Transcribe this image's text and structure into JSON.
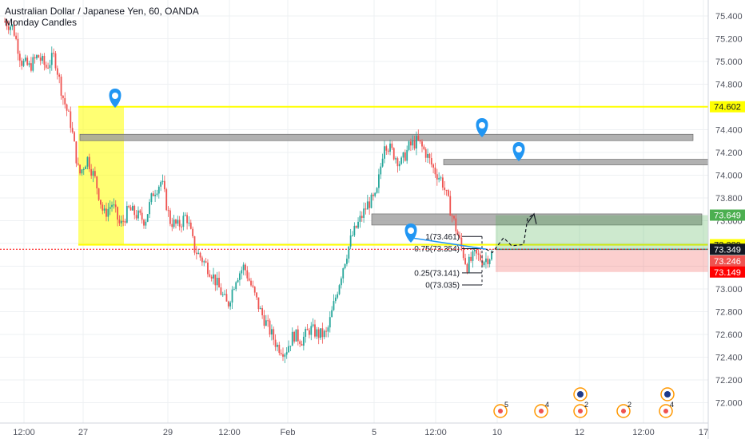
{
  "header": {
    "title": "Australian Dollar / Japanese Yen, 60, OANDA",
    "subtitle": "Monday Candles"
  },
  "colors": {
    "up": "#26a69a",
    "down": "#ef5350",
    "zone_yellow": "#ffff00",
    "grey_zone": "#9e9e9e",
    "green_zone": "#4caf50",
    "red_zone": "#ef5350",
    "marker_blue": "#2196f3",
    "price_red": "#ff0000",
    "axis_text": "#50535e",
    "grid": "#eef0f3"
  },
  "chart_data": {
    "type": "candlestick",
    "symbol": "AUDJPY",
    "timeframe": "60",
    "source": "OANDA",
    "ylim": [
      71.95,
      75.52
    ],
    "y_ticks": [
      "75.400",
      "75.200",
      "75.000",
      "74.800",
      "74.600",
      "74.400",
      "74.200",
      "74.000",
      "73.800",
      "73.600",
      "73.400",
      "73.200",
      "73.000",
      "72.800",
      "72.600",
      "72.400",
      "72.200",
      "72.000"
    ],
    "x_ticks": [
      "12:00",
      "27",
      "29",
      "12:00",
      "Feb",
      "5",
      "12:00",
      "10",
      "12",
      "12:00",
      "17"
    ],
    "price_path": [
      [
        "12:00",
        75.35
      ],
      [
        "",
        75.3
      ],
      [
        "",
        75.0
      ],
      [
        "",
        74.95
      ],
      [
        "",
        75.05
      ],
      [
        "",
        74.95
      ],
      [
        "",
        75.05
      ],
      [
        "",
        74.7
      ],
      [
        "27",
        74.45
      ],
      [
        "",
        74.0
      ],
      [
        "",
        74.15
      ],
      [
        "",
        73.95
      ],
      [
        "",
        73.65
      ],
      [
        "",
        73.75
      ],
      [
        "",
        73.55
      ],
      [
        "",
        73.7
      ],
      [
        "",
        73.65
      ],
      [
        "",
        73.6
      ],
      [
        "29",
        73.85
      ],
      [
        "",
        73.95
      ],
      [
        "",
        73.6
      ],
      [
        "",
        73.55
      ],
      [
        "",
        73.65
      ],
      [
        "",
        73.35
      ],
      [
        "",
        73.25
      ],
      [
        "12:00",
        73.15
      ],
      [
        "",
        73.0
      ],
      [
        "",
        72.85
      ],
      [
        "",
        73.1
      ],
      [
        "",
        73.2
      ],
      [
        "",
        73.0
      ],
      [
        "",
        72.8
      ],
      [
        "",
        72.65
      ],
      [
        "Feb",
        72.5
      ],
      [
        "",
        72.45
      ],
      [
        "",
        72.6
      ],
      [
        "",
        72.55
      ],
      [
        "",
        72.65
      ],
      [
        "",
        72.6
      ],
      [
        "",
        72.6
      ],
      [
        "",
        72.9
      ],
      [
        "",
        73.2
      ],
      [
        "",
        73.45
      ],
      [
        "",
        73.6
      ],
      [
        "5",
        73.75
      ],
      [
        "",
        73.8
      ],
      [
        "",
        74.3
      ],
      [
        "",
        74.2
      ],
      [
        "",
        74.1
      ],
      [
        "12:00",
        74.25
      ],
      [
        "",
        74.3
      ],
      [
        "",
        74.2
      ],
      [
        "",
        74.05
      ],
      [
        "",
        73.95
      ],
      [
        "",
        73.7
      ],
      [
        "",
        73.45
      ],
      [
        "",
        73.2
      ],
      [
        "",
        73.3
      ],
      [
        "",
        73.25
      ],
      [
        "10",
        73.3
      ]
    ],
    "horizontal_lines": [
      {
        "label": "74.602",
        "value": 74.602,
        "color": "#ffff00"
      },
      {
        "label": "73.389",
        "value": 73.389,
        "color": "#ffff00"
      },
      {
        "label": "73.348",
        "value": 73.348,
        "color": "#26a69a"
      }
    ],
    "axis_labels": [
      {
        "text": "74.602",
        "value": 74.602,
        "bg": "#ffff00",
        "fg": "#131722"
      },
      {
        "text": "73.649",
        "value": 73.649,
        "bg": "#4caf50",
        "fg": "#ffffff"
      },
      {
        "text": "73.389",
        "value": 73.389,
        "bg": "#ffff00",
        "fg": "#131722"
      },
      {
        "text": "73.348",
        "value": 73.348,
        "bg": "#26a69a",
        "fg": "#ffffff"
      },
      {
        "text": "73.349",
        "value": 73.349,
        "bg": "#131722",
        "fg": "#ffffff"
      },
      {
        "text": "73.246",
        "value": 73.246,
        "bg": "#ef5350",
        "fg": "#ffffff"
      },
      {
        "text": "73.149",
        "value": 73.149,
        "bg": "#ff0000",
        "fg": "#ffffff"
      }
    ],
    "fib_levels": [
      {
        "label": "1(73.461)",
        "value": 73.461
      },
      {
        "label": "0.75(73.354)",
        "value": 73.354
      },
      {
        "label": "0.25(73.141)",
        "value": 73.141
      },
      {
        "label": "0(73.035)",
        "value": 73.035
      }
    ],
    "event_markers": [
      {
        "count": "5"
      },
      {
        "count": "4"
      },
      {
        "count": "2"
      },
      {
        "count": "2"
      },
      {
        "count": "4"
      }
    ]
  }
}
